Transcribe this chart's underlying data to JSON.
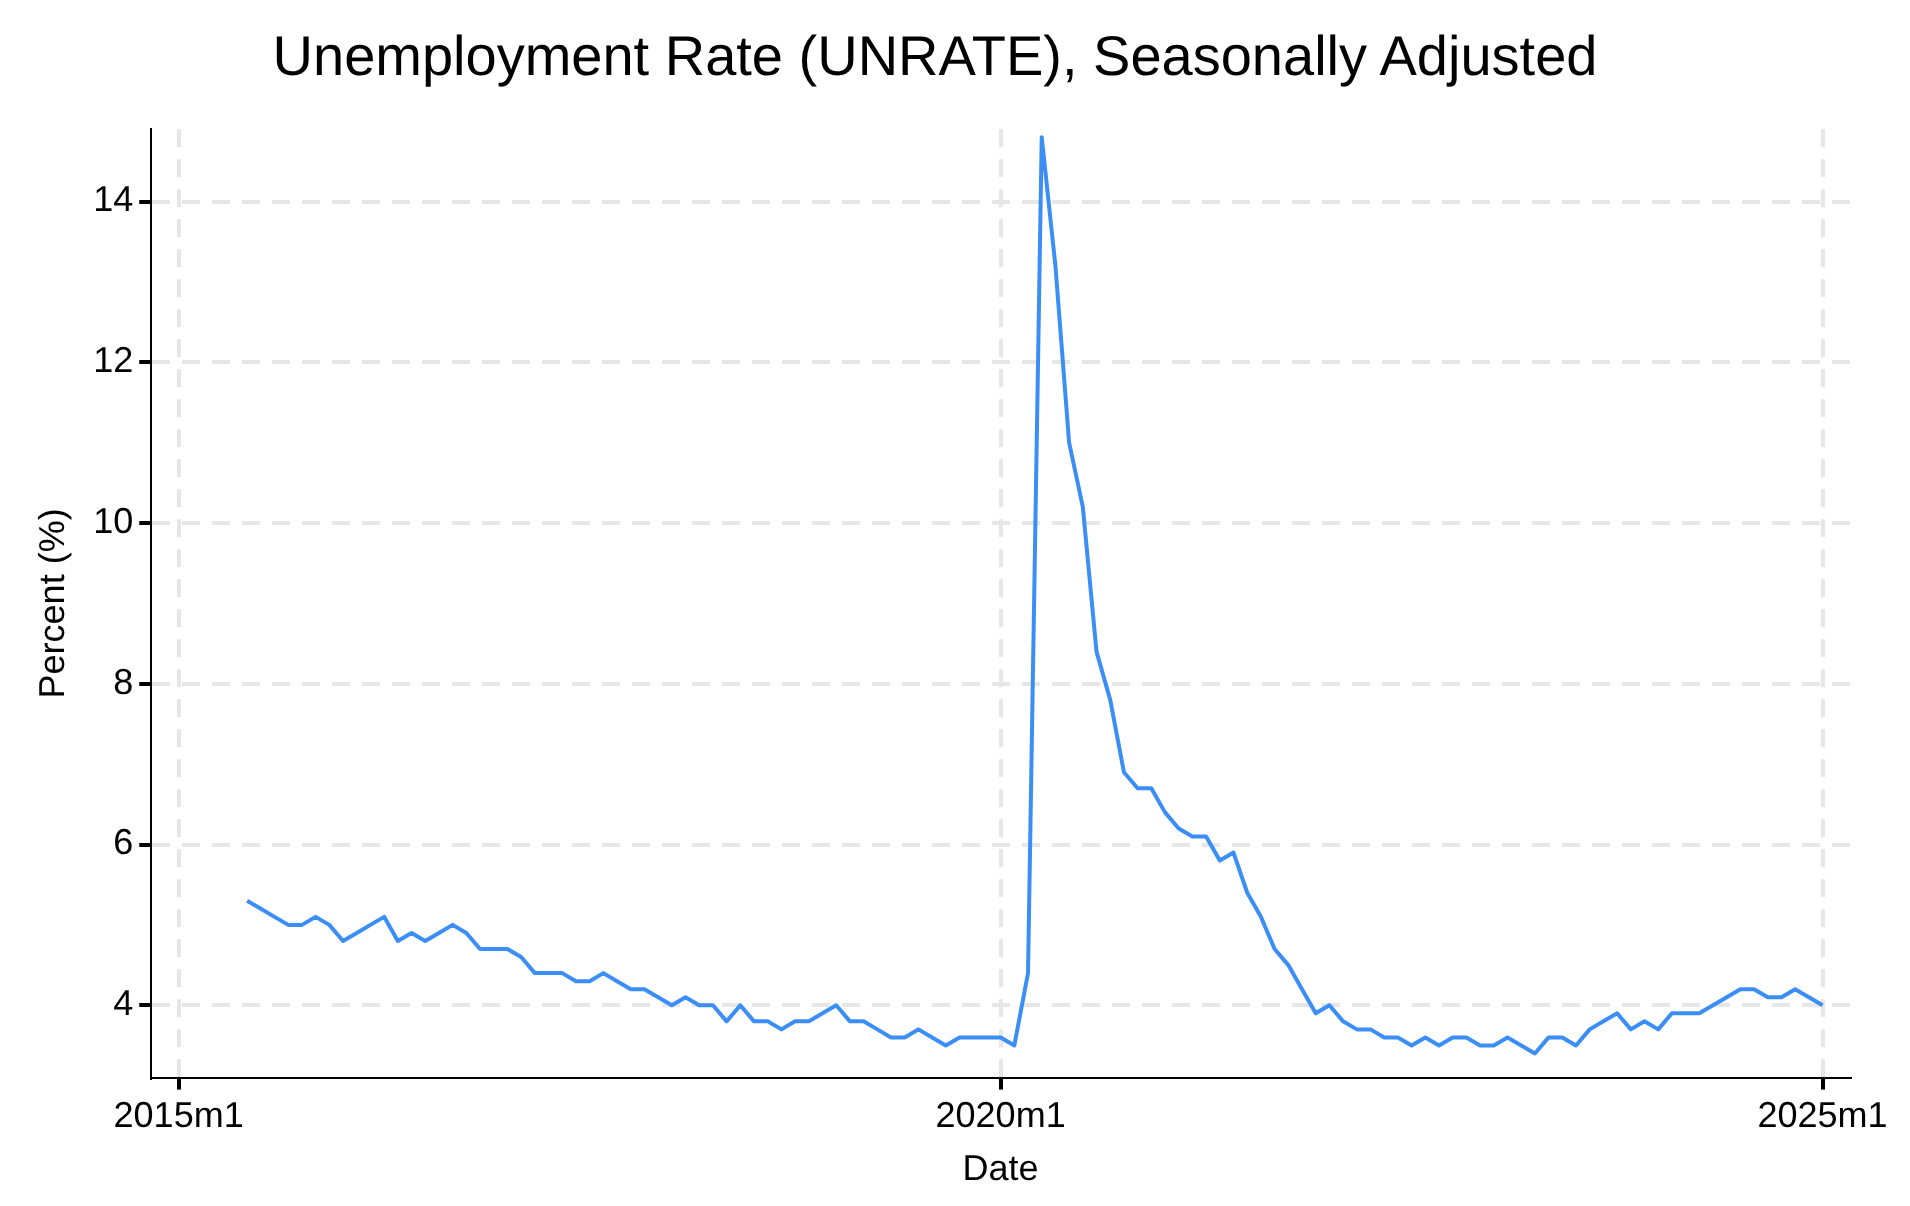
{
  "chart_data": {
    "type": "line",
    "title": "Unemployment Rate (UNRATE), Seasonally Adjusted",
    "xlabel": "Date",
    "ylabel": "Percent (%)",
    "x": [
      "2015-06",
      "2015-07",
      "2015-08",
      "2015-09",
      "2015-10",
      "2015-11",
      "2015-12",
      "2016-01",
      "2016-02",
      "2016-03",
      "2016-04",
      "2016-05",
      "2016-06",
      "2016-07",
      "2016-08",
      "2016-09",
      "2016-10",
      "2016-11",
      "2016-12",
      "2017-01",
      "2017-02",
      "2017-03",
      "2017-04",
      "2017-05",
      "2017-06",
      "2017-07",
      "2017-08",
      "2017-09",
      "2017-10",
      "2017-11",
      "2017-12",
      "2018-01",
      "2018-02",
      "2018-03",
      "2018-04",
      "2018-05",
      "2018-06",
      "2018-07",
      "2018-08",
      "2018-09",
      "2018-10",
      "2018-11",
      "2018-12",
      "2019-01",
      "2019-02",
      "2019-03",
      "2019-04",
      "2019-05",
      "2019-06",
      "2019-07",
      "2019-08",
      "2019-09",
      "2019-10",
      "2019-11",
      "2019-12",
      "2020-01",
      "2020-02",
      "2020-03",
      "2020-04",
      "2020-05",
      "2020-06",
      "2020-07",
      "2020-08",
      "2020-09",
      "2020-10",
      "2020-11",
      "2020-12",
      "2021-01",
      "2021-02",
      "2021-03",
      "2021-04",
      "2021-05",
      "2021-06",
      "2021-07",
      "2021-08",
      "2021-09",
      "2021-10",
      "2021-11",
      "2021-12",
      "2022-01",
      "2022-02",
      "2022-03",
      "2022-04",
      "2022-05",
      "2022-06",
      "2022-07",
      "2022-08",
      "2022-09",
      "2022-10",
      "2022-11",
      "2022-12",
      "2023-01",
      "2023-02",
      "2023-03",
      "2023-04",
      "2023-05",
      "2023-06",
      "2023-07",
      "2023-08",
      "2023-09",
      "2023-10",
      "2023-11",
      "2023-12",
      "2024-01",
      "2024-02",
      "2024-03",
      "2024-04",
      "2024-05",
      "2024-06",
      "2024-07",
      "2024-08",
      "2024-09",
      "2024-10",
      "2024-11",
      "2024-12",
      "2025-01"
    ],
    "series": [
      {
        "color": "#3a8ef6",
        "values": [
          5.3,
          5.2,
          5.1,
          5.0,
          5.0,
          5.1,
          5.0,
          4.8,
          4.9,
          5.0,
          5.1,
          4.8,
          4.9,
          4.8,
          4.9,
          5.0,
          4.9,
          4.7,
          4.7,
          4.7,
          4.6,
          4.4,
          4.4,
          4.4,
          4.3,
          4.3,
          4.4,
          4.3,
          4.2,
          4.2,
          4.1,
          4.0,
          4.1,
          4.0,
          4.0,
          3.8,
          4.0,
          3.8,
          3.8,
          3.7,
          3.8,
          3.8,
          3.9,
          4.0,
          3.8,
          3.8,
          3.7,
          3.6,
          3.6,
          3.7,
          3.6,
          3.5,
          3.6,
          3.6,
          3.6,
          3.6,
          3.5,
          4.4,
          14.8,
          13.2,
          11.0,
          10.2,
          8.4,
          7.8,
          6.9,
          6.7,
          6.7,
          6.4,
          6.2,
          6.1,
          6.1,
          5.8,
          5.9,
          5.4,
          5.1,
          4.7,
          4.5,
          4.2,
          3.9,
          4.0,
          3.8,
          3.7,
          3.7,
          3.6,
          3.6,
          3.5,
          3.6,
          3.5,
          3.6,
          3.6,
          3.5,
          3.5,
          3.6,
          3.5,
          3.4,
          3.6,
          3.6,
          3.5,
          3.7,
          3.8,
          3.9,
          3.7,
          3.8,
          3.7,
          3.9,
          3.9,
          3.9,
          4.0,
          4.1,
          4.2,
          4.2,
          4.1,
          4.1,
          4.2,
          4.1,
          4.0
        ]
      }
    ],
    "xlim": [
      "2014-11",
      "2025-03"
    ],
    "xticks": [
      {
        "value": "2015-01",
        "label": "2015m1"
      },
      {
        "value": "2020-01",
        "label": "2020m1"
      },
      {
        "value": "2025-01",
        "label": "2025m1"
      }
    ],
    "ylim": [
      3.1,
      14.9
    ],
    "yticks": [
      4,
      6,
      8,
      10,
      12,
      14
    ],
    "grid": true,
    "line_style": "solid",
    "marker": "none",
    "legend": false
  }
}
